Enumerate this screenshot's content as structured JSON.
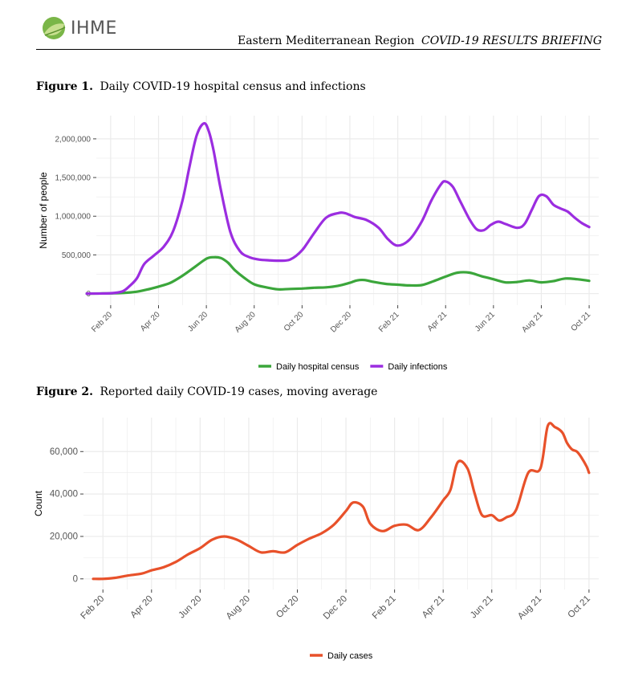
{
  "header": {
    "logo_text": "IHME",
    "region": "Eastern Mediterranean Region",
    "briefing": "COVID-19 RESULTS BRIEFING"
  },
  "figure1": {
    "label": "Figure 1.",
    "caption": "Daily COVID-19 hospital census and infections"
  },
  "figure2": {
    "label": "Figure 2.",
    "caption": "Reported daily COVID-19 cases, moving average"
  },
  "colors": {
    "census": "#3ba63b",
    "infections": "#9b2de0",
    "cases": "#e8512a",
    "grid": "#ebebeb"
  },
  "chart_data": [
    {
      "type": "line",
      "title": "Daily COVID-19 hospital census and infections",
      "xlabel": "",
      "ylabel": "Number of people",
      "x_range": [
        -0.6,
        20.4
      ],
      "ylim": [
        -150000,
        2300000
      ],
      "x_ticks": [
        0,
        2,
        4,
        6,
        8,
        10,
        12,
        14,
        16,
        18,
        20
      ],
      "x_tick_labels": [
        "Feb 20",
        "Apr 20",
        "Jun 20",
        "Aug 20",
        "Oct 20",
        "Dec 20",
        "Feb 21",
        "Apr 21",
        "Jun 21",
        "Aug 21",
        "Oct 21"
      ],
      "y_ticks": [
        0,
        500000,
        1000000,
        1500000,
        2000000
      ],
      "y_tick_labels": [
        "0",
        "500,000",
        "1,000,000",
        "1,500,000",
        "2,000,000"
      ],
      "legend": "bottom",
      "series": [
        {
          "name": "Daily hospital census",
          "color": "#3ba63b",
          "x": [
            -1,
            0,
            0.5,
            1,
            1.5,
            2,
            2.5,
            3,
            3.5,
            4,
            4.3,
            4.6,
            4.9,
            5.2,
            5.6,
            6,
            6.5,
            7,
            7.5,
            8,
            8.5,
            9,
            9.5,
            10,
            10.3,
            10.6,
            11,
            11.5,
            12,
            12.5,
            13,
            13.5,
            14,
            14.5,
            15,
            15.5,
            16,
            16.5,
            17,
            17.5,
            18,
            18.5,
            19,
            19.5,
            20
          ],
          "y": [
            0,
            3000,
            8000,
            20000,
            50000,
            90000,
            140000,
            230000,
            340000,
            450000,
            470000,
            460000,
            400000,
            300000,
            200000,
            120000,
            80000,
            55000,
            60000,
            65000,
            75000,
            80000,
            100000,
            140000,
            170000,
            175000,
            150000,
            125000,
            115000,
            105000,
            110000,
            160000,
            220000,
            270000,
            270000,
            225000,
            185000,
            145000,
            150000,
            170000,
            145000,
            160000,
            195000,
            185000,
            165000
          ]
        },
        {
          "name": "Daily infections",
          "color": "#9b2de0",
          "x": [
            -1,
            0,
            0.5,
            0.8,
            1.1,
            1.4,
            1.8,
            2.2,
            2.6,
            3,
            3.3,
            3.6,
            3.9,
            4.1,
            4.3,
            4.6,
            5,
            5.4,
            5.8,
            6.2,
            6.6,
            7,
            7.5,
            8,
            8.5,
            9,
            9.5,
            9.8,
            10.2,
            10.7,
            11.2,
            11.6,
            12,
            12.5,
            13,
            13.4,
            13.8,
            14,
            14.3,
            14.6,
            15,
            15.3,
            15.6,
            15.9,
            16.2,
            16.5,
            17,
            17.3,
            17.6,
            17.9,
            18.2,
            18.5,
            18.8,
            19.1,
            19.4,
            19.7,
            20
          ],
          "y": [
            0,
            5000,
            30000,
            100000,
            200000,
            380000,
            490000,
            600000,
            800000,
            1200000,
            1650000,
            2050000,
            2200000,
            2100000,
            1850000,
            1350000,
            800000,
            550000,
            470000,
            440000,
            430000,
            425000,
            440000,
            560000,
            780000,
            980000,
            1040000,
            1040000,
            990000,
            950000,
            850000,
            700000,
            620000,
            700000,
            930000,
            1200000,
            1410000,
            1450000,
            1380000,
            1200000,
            960000,
            830000,
            820000,
            890000,
            930000,
            900000,
            850000,
            900000,
            1080000,
            1260000,
            1260000,
            1150000,
            1100000,
            1060000,
            980000,
            910000,
            860000
          ]
        }
      ]
    },
    {
      "type": "line",
      "title": "Reported daily COVID-19 cases, moving average",
      "xlabel": "",
      "ylabel": "Count",
      "x_range": [
        -0.8,
        20.4
      ],
      "ylim": [
        -5000,
        76000
      ],
      "x_ticks": [
        0,
        2,
        4,
        6,
        8,
        10,
        12,
        14,
        16,
        18,
        20
      ],
      "x_tick_labels": [
        "Feb 20",
        "Apr 20",
        "Jun 20",
        "Aug 20",
        "Oct 20",
        "Dec 20",
        "Feb 21",
        "Apr 21",
        "Jun 21",
        "Aug 21",
        "Oct 21"
      ],
      "y_ticks": [
        0,
        20000,
        40000,
        60000
      ],
      "y_tick_labels": [
        "0",
        "20,000",
        "40,000",
        "60,000"
      ],
      "legend": "bottom",
      "series": [
        {
          "name": "Daily cases",
          "color": "#e8512a",
          "x": [
            -0.4,
            0,
            0.5,
            1,
            1.6,
            2,
            2.5,
            3,
            3.5,
            4,
            4.5,
            5,
            5.5,
            6,
            6.5,
            7,
            7.5,
            8,
            8.5,
            9,
            9.5,
            10,
            10.3,
            10.7,
            11,
            11.5,
            12,
            12.5,
            13,
            13.5,
            14,
            14.3,
            14.6,
            15,
            15.3,
            15.6,
            16,
            16.3,
            16.6,
            17,
            17.5,
            18,
            18.3,
            18.6,
            18.9,
            19.1,
            19.3,
            19.5,
            19.7,
            19.9,
            20
          ],
          "y": [
            0,
            0,
            500,
            1500,
            2500,
            4000,
            5500,
            8000,
            11500,
            14500,
            18500,
            20000,
            18500,
            15500,
            12500,
            13000,
            12500,
            16000,
            19000,
            21500,
            25500,
            32000,
            36000,
            34000,
            26000,
            22500,
            25000,
            25500,
            23000,
            29000,
            37000,
            42000,
            55000,
            52000,
            40000,
            30000,
            30000,
            27500,
            29000,
            32500,
            50000,
            52000,
            72000,
            71500,
            69000,
            64000,
            61000,
            60000,
            57000,
            53000,
            50000
          ]
        }
      ]
    }
  ]
}
